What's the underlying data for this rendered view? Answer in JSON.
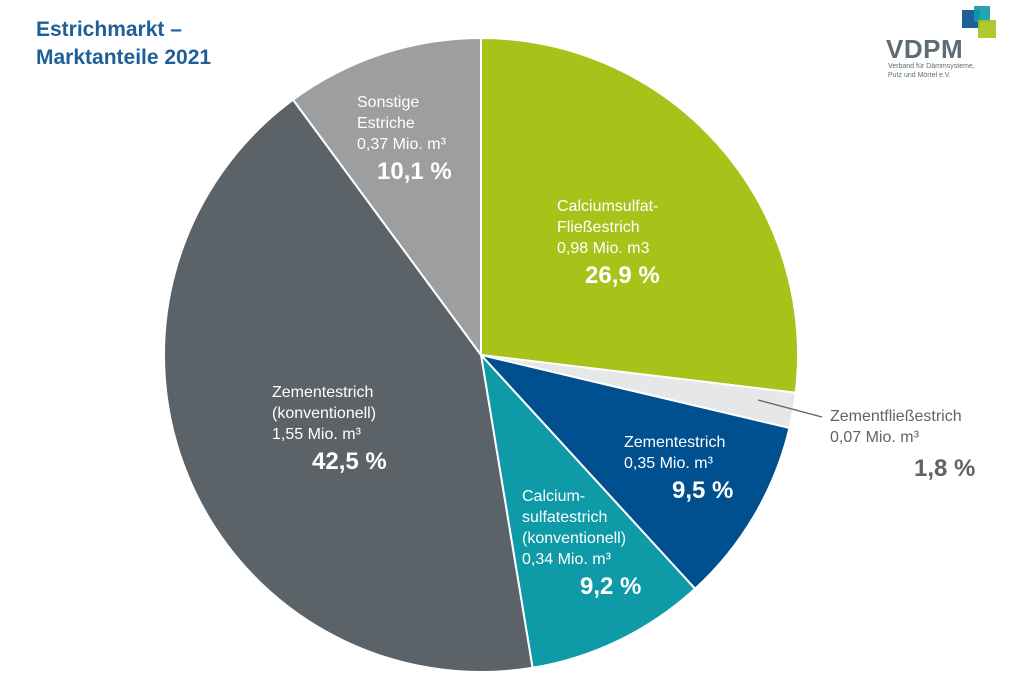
{
  "title": {
    "line1": "Estrichmarkt –",
    "line2": "Marktanteile 2021"
  },
  "logo": {
    "name": "VDPM",
    "sub1": "Verband für Dämmsysteme,",
    "sub2": "Putz und Mörtel e.V.",
    "colors": [
      "#1f5f97",
      "#0e9aa7",
      "#a8c21a"
    ]
  },
  "chart_data": {
    "type": "pie",
    "start_angle_deg": 0,
    "direction": "clockwise",
    "slices": [
      {
        "label_lines": [
          "Calciumsulfat-",
          "Fließestrich"
        ],
        "amount": "0,98 Mio. m3",
        "percent": "26,9 %",
        "value": 26.9,
        "color": "#a8c21a"
      },
      {
        "label_lines": [
          "Zementfließestrich"
        ],
        "amount": "0,07 Mio. m³",
        "percent": "1,8 %",
        "value": 1.8,
        "color": "#e6e7e8"
      },
      {
        "label_lines": [
          "Zementestrich"
        ],
        "amount": "0,35 Mio. m³",
        "percent": "9,5 %",
        "value": 9.5,
        "color": "#004f8e"
      },
      {
        "label_lines": [
          "Calcium-",
          "sulfatestrich",
          "(konventionell)"
        ],
        "amount": "0,34 Mio. m³",
        "percent": "9,2 %",
        "value": 9.2,
        "color": "#0e9aa7"
      },
      {
        "label_lines": [
          "Zementestrich",
          "(konventionell)"
        ],
        "amount": "1,55 Mio. m³",
        "percent": "42,5 %",
        "value": 42.5,
        "color": "#5b6268"
      },
      {
        "label_lines": [
          "Sonstige",
          "Estriche"
        ],
        "amount": "0,37 Mio. m³",
        "percent": "10,1 %",
        "value": 10.1,
        "color": "#9d9e9f"
      }
    ]
  }
}
